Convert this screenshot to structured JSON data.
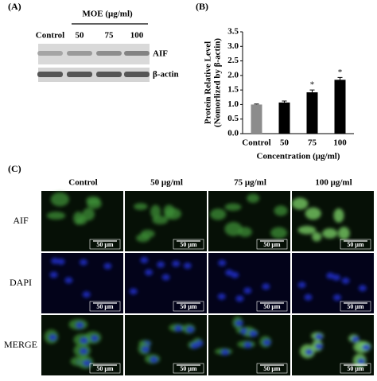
{
  "panel_a": {
    "label": "(A)",
    "treatment": "MOE (μg/ml)",
    "lanes": [
      "Control",
      "50",
      "75",
      "100"
    ],
    "rows": [
      "AIF",
      "β-actin"
    ]
  },
  "chart_data": {
    "type": "bar",
    "label": "(B)",
    "ylabel": [
      "Protein Relative Level",
      "(Nomorlized by β-actin)"
    ],
    "xlabel": "Concentration (μg/ml)",
    "categories": [
      "Control",
      "50",
      "75",
      "100"
    ],
    "values": [
      1.0,
      1.07,
      1.42,
      1.85
    ],
    "errors": [
      0.02,
      0.05,
      0.08,
      0.08
    ],
    "colors": [
      "#8c8c8c",
      "#000000",
      "#000000",
      "#000000"
    ],
    "annotations": [
      null,
      null,
      "*",
      "*"
    ],
    "ylim": [
      0,
      3.5
    ],
    "yticks": [
      {
        "value": 0,
        "label": "0.0"
      },
      0.5,
      {
        "value": 1,
        "label": "1.0"
      },
      1.5,
      {
        "value": 2,
        "label": "2.0"
      },
      2.5,
      {
        "value": 3,
        "label": "3.0"
      },
      3.5
    ],
    "grid": false
  },
  "panel_c": {
    "label": "(C)",
    "columns": [
      "Control",
      "50 μg/ml",
      "75 μg/ml",
      "100 μg/ml"
    ],
    "rows": [
      "AIF",
      "DAPI",
      "MERGE"
    ],
    "scale_bar": "50 μm"
  }
}
